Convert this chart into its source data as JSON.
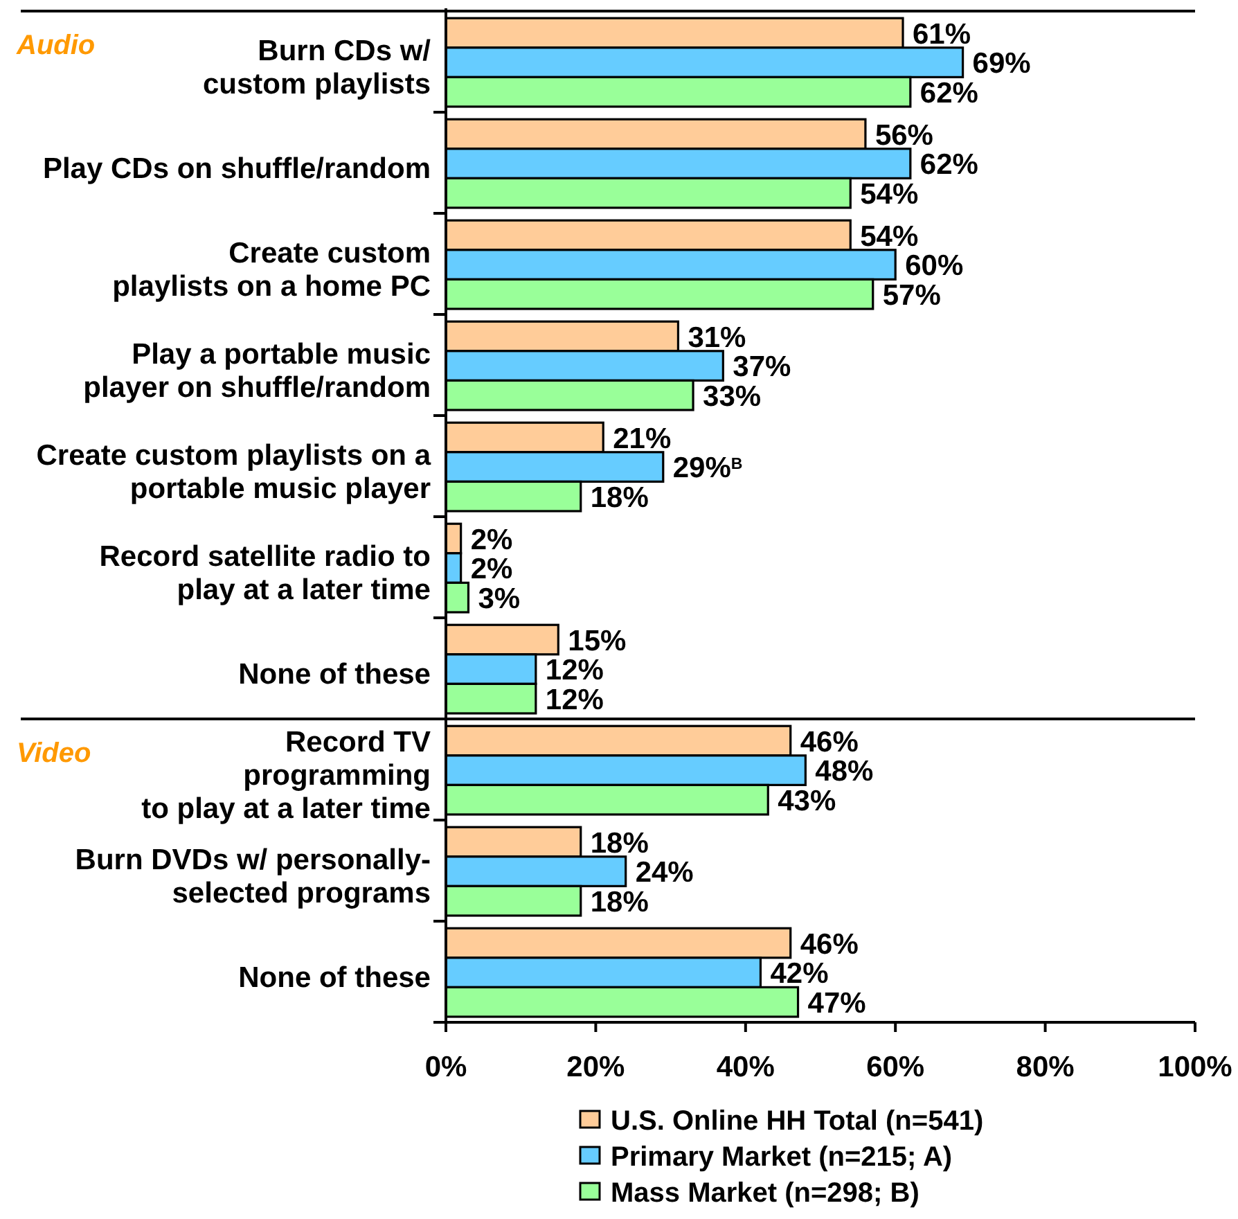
{
  "chart_data": [
    {
      "type": "bar",
      "orientation": "horizontal",
      "title": "Audio",
      "categories": [
        "Burn CDs w/\ncustom playlists",
        "Play CDs on shuffle/random",
        "Create custom\nplaylists on a home PC",
        "Play a portable music\nplayer on shuffle/random",
        "Create custom playlists on a\nportable music player",
        "Record satellite radio to\nplay at a later time",
        "None of these"
      ],
      "series": [
        {
          "color": "#ffcc99",
          "values": [
            61,
            56,
            54,
            31,
            21,
            2,
            15
          ],
          "value_labels": [
            "61%",
            "56%",
            "54%",
            "31%",
            "21%",
            "2%",
            "15%"
          ]
        },
        {
          "color": "#66ccff",
          "values": [
            69,
            62,
            60,
            37,
            29,
            2,
            12
          ],
          "value_labels": [
            "69%",
            "62%",
            "60%",
            "37%",
            "29%$^{B}$",
            "2%",
            "12%"
          ]
        },
        {
          "color": "#99ff99",
          "values": [
            62,
            54,
            57,
            33,
            18,
            3,
            12
          ],
          "value_labels": [
            "62%",
            "54%",
            "57%",
            "33%",
            "18%",
            "3%",
            "12%"
          ]
        }
      ],
      "xlim": [
        0,
        100
      ],
      "tick_labels": "y"
    },
    {
      "type": "bar",
      "orientation": "horizontal",
      "title": "Video",
      "categories": [
        "Record TV\nprogramming\nto play at a later time",
        "Burn DVDs w/ personally-\nselected programs",
        "None of these"
      ],
      "series": [
        {
          "name": "U.S. Online HH Total (n=541)",
          "color": "#ffcc99",
          "values": [
            46,
            18,
            46
          ],
          "value_labels": [
            "46%",
            "18%",
            "46%"
          ]
        },
        {
          "name": "Primary Market (n=215; A)",
          "color": "#66ccff",
          "values": [
            48,
            24,
            42
          ],
          "value_labels": [
            "48%",
            "24%",
            "42%"
          ]
        },
        {
          "name": "Mass Market (n=298; B)",
          "color": "#99ff99",
          "values": [
            43,
            18,
            47
          ],
          "value_labels": [
            "43%",
            "18%",
            "47%"
          ]
        }
      ],
      "xlim": [
        0,
        100
      ],
      "xticks": [
        {
          "value": 0,
          "label": "0%"
        },
        {
          "value": 20,
          "label": "20%"
        },
        {
          "value": 40,
          "label": "40%"
        },
        {
          "value": 60,
          "label": "60%"
        },
        {
          "value": 80,
          "label": "80%"
        },
        {
          "value": 100,
          "label": "100%"
        }
      ],
      "legend": "bottom"
    }
  ]
}
